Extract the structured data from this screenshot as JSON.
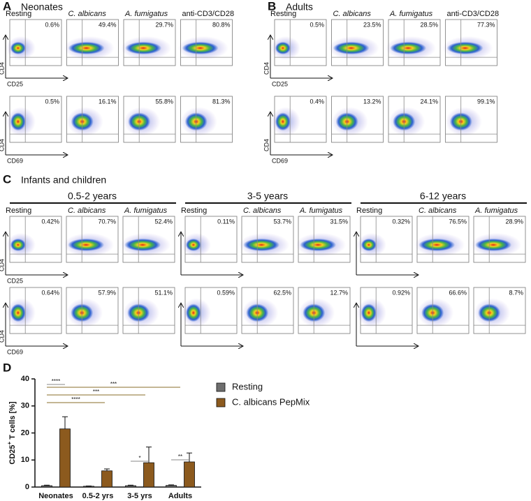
{
  "panels": [
    {
      "label": "A",
      "title": "Neonates",
      "columns": [
        "Resting",
        "C. albicans",
        "A. fumigatus",
        "anti-CD3/CD28"
      ],
      "percentages": [
        [
          "0.6%",
          "49.4%",
          "29.7%",
          "80.8%"
        ],
        [
          "0.5%",
          "16.1%",
          "55.8%",
          "81.3%"
        ]
      ]
    },
    {
      "label": "B",
      "title": "Adults",
      "columns": [
        "Resting",
        "C. albicans",
        "A. fumigatus",
        "anti-CD3/CD28"
      ],
      "percentages": [
        [
          "0.5%",
          "23.5%",
          "28.5%",
          "77.3%"
        ],
        [
          "0.4%",
          "13.2%",
          "24.1%",
          "99.1%"
        ]
      ]
    }
  ],
  "markers": {
    "y": "CD4",
    "rows": [
      "CD25",
      "CD69"
    ]
  },
  "panel_c": {
    "label": "C",
    "title": "Infants and children",
    "groups": [
      {
        "name": "0.5-2 years",
        "columns": [
          "Resting",
          "C. albicans",
          "A. fumigatus"
        ],
        "percentages": [
          [
            "0.42%",
            "70.7%",
            "52.4%"
          ],
          [
            "0.64%",
            "57.9%",
            "51.1%"
          ]
        ]
      },
      {
        "name": "3-5 years",
        "columns": [
          "Resting",
          "C. albicans",
          "A. fumigatus"
        ],
        "percentages": [
          [
            "0.11%",
            "53.7%",
            "31.5%"
          ],
          [
            "0.59%",
            "62.5%",
            "12.7%"
          ]
        ]
      },
      {
        "name": "6-12 years",
        "columns": [
          "Resting",
          "C. albicans",
          "A. fumigatus"
        ],
        "percentages": [
          [
            "0.32%",
            "76.5%",
            "28.9%"
          ],
          [
            "0.92%",
            "66.6%",
            "8.7%"
          ]
        ]
      }
    ]
  },
  "chart_data": {
    "type": "bar",
    "panel_label": "D",
    "categories": [
      "Neonates",
      "0.5-2 yrs",
      "3-5 yrs",
      "Adults"
    ],
    "series": [
      {
        "name": "Resting",
        "color": "#6e6e6e",
        "values": [
          0.5,
          0.3,
          0.5,
          0.6
        ],
        "errors": [
          0.2,
          0.1,
          0.2,
          0.2
        ]
      },
      {
        "name": "C. albicans PepMix",
        "color": "#8c5a1e",
        "values": [
          21.5,
          6,
          9,
          9.3
        ],
        "errors": [
          4.5,
          0.7,
          5.8,
          3.3
        ]
      }
    ],
    "ylim": [
      0,
      40
    ],
    "yticks": [
      0,
      10,
      20,
      30,
      40
    ],
    "y_label": {
      "text": "CD25",
      "superscript": "+",
      "suffix": " T cells [%]"
    },
    "annotations": [
      {
        "text": "****",
        "color": "#888888"
      },
      {
        "text": "***",
        "color": "#8a6d2a"
      },
      {
        "text": "***",
        "color": "#8a6d2a"
      },
      {
        "text": "****",
        "color": "#8a6d2a"
      },
      {
        "text": "*",
        "color": "#888888"
      },
      {
        "text": "**",
        "color": "#888888"
      }
    ]
  }
}
